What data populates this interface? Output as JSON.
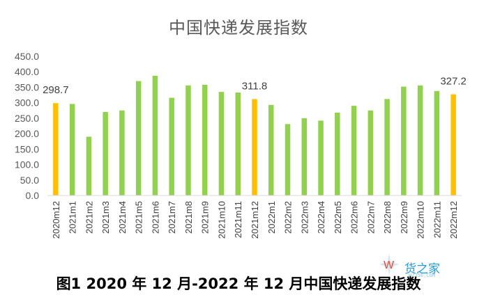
{
  "chart_data": {
    "type": "bar",
    "title": "中国快递发展指数",
    "categories": [
      "2020m12",
      "2021m1",
      "2021m2",
      "2021m3",
      "2021m4",
      "2021m5",
      "2021m6",
      "2021m7",
      "2021m8",
      "2021m9",
      "2021m10",
      "2021m11",
      "2021m12",
      "2022m1",
      "2022m2",
      "2022m3",
      "2022m4",
      "2022m5",
      "2022m6",
      "2022m7",
      "2022m8",
      "2022m9",
      "2022m10",
      "2022m11",
      "2022m12"
    ],
    "values": [
      298.7,
      296,
      190,
      270,
      275,
      370,
      387,
      316,
      356,
      358,
      335,
      333,
      311.8,
      293,
      231,
      250,
      242,
      268,
      290,
      275,
      312,
      352,
      356,
      338,
      327.2
    ],
    "highlighted": [
      0,
      12,
      24
    ],
    "data_labels": [
      {
        "index": 0,
        "text": "298.7"
      },
      {
        "index": 12,
        "text": "311.8"
      },
      {
        "index": 24,
        "text": "327.2"
      }
    ],
    "ylim": [
      0,
      450
    ],
    "yticks": [
      "0.0",
      "50.0",
      "100.0",
      "150.0",
      "200.0",
      "250.0",
      "300.0",
      "350.0",
      "400.0",
      "450.0"
    ],
    "xlabel": "",
    "ylabel": "",
    "grid": false,
    "colors": {
      "normal": "#92d050",
      "highlight": "#ffc000"
    }
  },
  "caption": "图1 2020 年 12 月-2022 年 12 月中国快递发展指数",
  "watermark": {
    "text": "货之家",
    "sub": "HZJ56.COM"
  }
}
